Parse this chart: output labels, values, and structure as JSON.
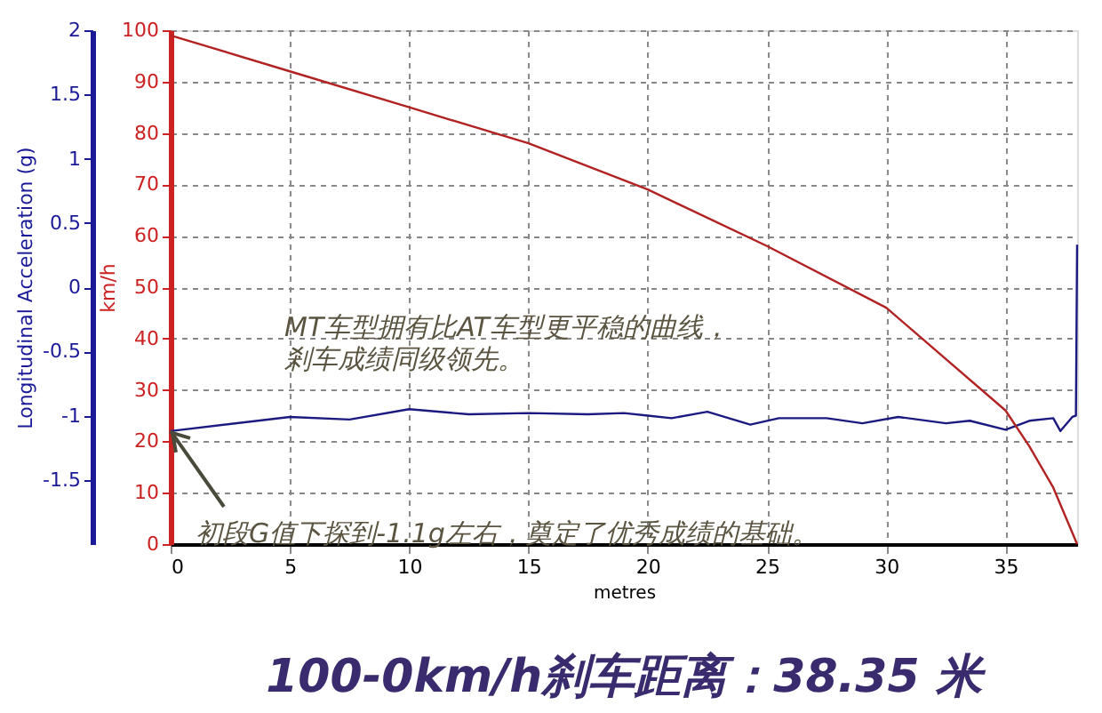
{
  "chart_data": {
    "type": "line",
    "title": "100-0km/h刹车距离：38.35 米",
    "xlabel": "metres",
    "ylabel": "Longitudinal Acceleration (g)",
    "y2label": "km/h",
    "xlim": [
      0,
      38
    ],
    "xticks": [
      0,
      5,
      10,
      15,
      20,
      25,
      30,
      35
    ],
    "ylim": [
      -2,
      2
    ],
    "yticks": [
      -1.5,
      -1,
      -0.5,
      0,
      0.5,
      1,
      1.5,
      2
    ],
    "y2lim": [
      0,
      100
    ],
    "y2ticks": [
      0,
      10,
      20,
      30,
      40,
      50,
      60,
      70,
      80,
      90,
      100
    ],
    "grid": true,
    "marker": "none",
    "line_style": "solid",
    "series": [
      {
        "color": "#1a1a80",
        "x": [
          0,
          5,
          7.5,
          10,
          12.5,
          15,
          17.5,
          19,
          20,
          21,
          22.5,
          24.3,
          25.5,
          27.5,
          29,
          30.5,
          32.5,
          33.5,
          35,
          36,
          37,
          37.3,
          37.8,
          37.95,
          38
        ],
        "values": [
          -1.12,
          -1.01,
          -1.03,
          -0.95,
          -0.99,
          -0.98,
          -0.99,
          -0.98,
          -1.0,
          -1.02,
          -0.97,
          -1.07,
          -1.02,
          -1.02,
          -1.06,
          -1.01,
          -1.06,
          -1.04,
          -1.11,
          -1.04,
          -1.02,
          -1.12,
          -1.01,
          -1.0,
          0.33
        ]
      },
      {
        "color": "#b22222",
        "axis": "y2",
        "x": [
          0,
          5,
          10,
          15,
          20,
          25,
          30,
          35,
          36,
          37,
          37.5,
          38
        ],
        "values": [
          99,
          92,
          85,
          78,
          69,
          58,
          46,
          26,
          19,
          11,
          5.5,
          0
        ]
      }
    ],
    "annotations": [
      "MT车型拥有比AT车型更平稳的曲线，",
      "剎车成绩同级领先。",
      {
        "text": "初段G值下探到-1.1g左右，奠定了优秀成绩的基础。",
        "x": 0,
        "y": -1.12
      }
    ]
  }
}
